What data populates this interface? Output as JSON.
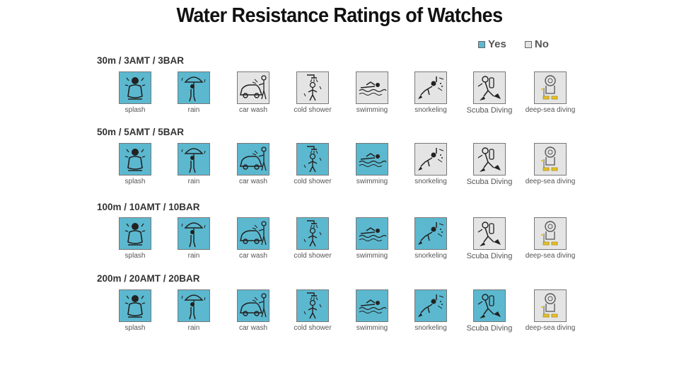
{
  "title": "Water Resistance Ratings of Watches",
  "legend": {
    "yes": {
      "label": "Yes",
      "color": "#5bb8cf"
    },
    "no": {
      "label": "No",
      "color": "#e4e4e4"
    }
  },
  "activities": [
    {
      "label": "splash",
      "icon": "splash-icon"
    },
    {
      "label": "rain",
      "icon": "umbrella-rain-icon"
    },
    {
      "label": "car wash",
      "icon": "car-wash-icon"
    },
    {
      "label": "cold shower",
      "icon": "shower-icon"
    },
    {
      "label": "swimming",
      "icon": "swimmer-icon"
    },
    {
      "label": "snorkeling",
      "icon": "snorkeler-icon"
    },
    {
      "label": "Scuba Diving",
      "icon": "scuba-diver-icon"
    },
    {
      "label": "deep-sea diving",
      "icon": "deep-sea-diver-icon"
    }
  ],
  "ratings": [
    {
      "label": "30m / 3AMT / 3BAR",
      "supported": [
        true,
        true,
        false,
        false,
        false,
        false,
        false,
        false
      ]
    },
    {
      "label": "50m / 5AMT / 5BAR",
      "supported": [
        true,
        true,
        true,
        true,
        true,
        false,
        false,
        false
      ]
    },
    {
      "label": "100m / 10AMT / 10BAR",
      "supported": [
        true,
        true,
        true,
        true,
        true,
        true,
        false,
        false
      ]
    },
    {
      "label": "200m / 20AMT / 20BAR",
      "supported": [
        true,
        true,
        true,
        true,
        true,
        true,
        true,
        false
      ]
    }
  ]
}
